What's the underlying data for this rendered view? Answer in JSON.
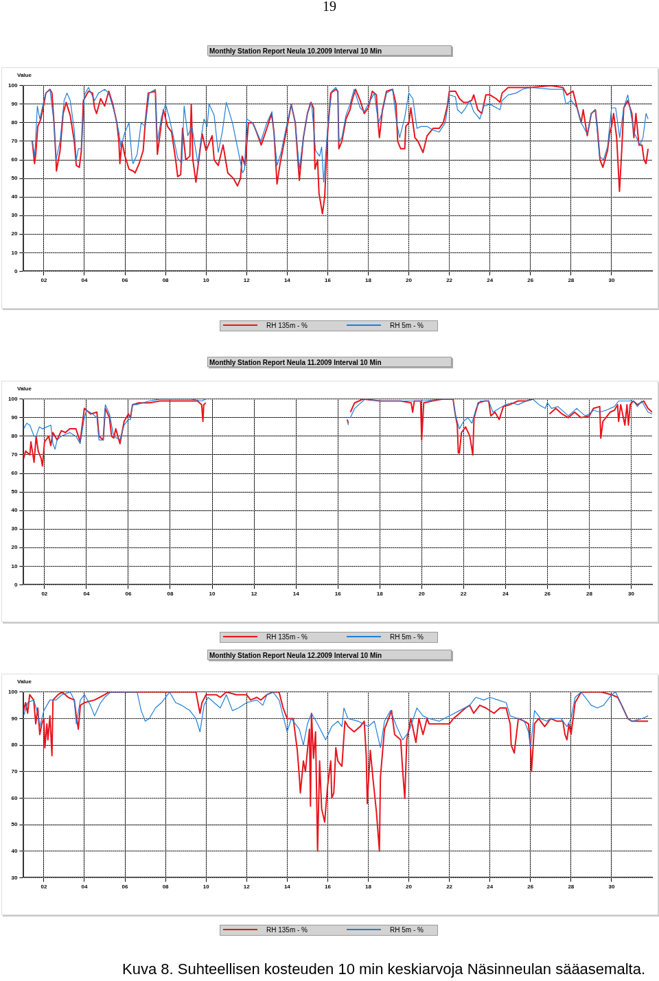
{
  "chart_data": [
    {
      "type": "line",
      "title": "Monthly Station Report Neula 10.2009 Interval 10 Min",
      "ylabel": "Value",
      "xlim": [
        1,
        32
      ],
      "ylim": [
        0,
        100
      ],
      "yticks": [
        0,
        10,
        20,
        30,
        40,
        50,
        60,
        70,
        80,
        90,
        100
      ],
      "xticks": [
        {
          "value": 2,
          "label": "02"
        },
        {
          "value": 4,
          "label": "04"
        },
        {
          "value": 6,
          "label": "06"
        },
        {
          "value": 8,
          "label": "08"
        },
        {
          "value": 10,
          "label": "10"
        },
        {
          "value": 12,
          "label": "12"
        },
        {
          "value": 14,
          "label": "14"
        },
        {
          "value": 16,
          "label": "16"
        },
        {
          "value": 18,
          "label": "18"
        },
        {
          "value": 20,
          "label": "20"
        },
        {
          "value": 22,
          "label": "22"
        },
        {
          "value": 24,
          "label": "24"
        },
        {
          "value": 26,
          "label": "26"
        },
        {
          "value": 28,
          "label": "28"
        },
        {
          "value": 30,
          "label": "30"
        }
      ],
      "grid": true,
      "legend": "bottom",
      "annotations": [
        "19"
      ],
      "series": [
        {
          "name": "RH 5m - %",
          "color": "#1e7fd8",
          "x": [
            1.43,
            1.55,
            1.68,
            1.8,
            2.0,
            2.1,
            2.3,
            2.5,
            2.6,
            2.8,
            3.0,
            3.14,
            3.3,
            3.5,
            3.6,
            3.7,
            3.85,
            4.0,
            4.2,
            4.5,
            4.7,
            5.0,
            5.2,
            5.5,
            5.7,
            5.8,
            6.0,
            6.2,
            6.35,
            6.4,
            6.6,
            6.8,
            7.0,
            7.2,
            7.5,
            7.6,
            7.8,
            8.0,
            8.2,
            8.4,
            8.6,
            8.8,
            8.92,
            9.1,
            9.3,
            9.6,
            9.8,
            9.9,
            10.05,
            10.15,
            10.4,
            10.6,
            10.8,
            11.0,
            11.3,
            11.6,
            11.8,
            11.9,
            12.0,
            12.3,
            12.5,
            12.7,
            13.0,
            13.25,
            13.5,
            13.7,
            14.0,
            14.2,
            14.4,
            14.6,
            14.8,
            15.0,
            15.2,
            15.4,
            15.6,
            15.7,
            15.8,
            16.0,
            16.2,
            16.4,
            16.5,
            16.55,
            16.7,
            16.9,
            17.1,
            17.3,
            17.6,
            17.8,
            18.0,
            18.3,
            18.5,
            18.7,
            18.9,
            19.2,
            19.4,
            19.55,
            19.8,
            20.0,
            20.2,
            20.4,
            20.6,
            20.9,
            21.2,
            21.5,
            21.8,
            22.0,
            22.3,
            22.4,
            22.6,
            22.8,
            23.0,
            23.2,
            23.5,
            23.7,
            24.0,
            24.5,
            24.6,
            24.9,
            25.3,
            25.6,
            26.0,
            27.0,
            27.6,
            27.75,
            28.0,
            28.3,
            28.5,
            28.8,
            29.0,
            29.2,
            29.4,
            29.6,
            29.8,
            30.0,
            30.2,
            30.4,
            30.6,
            30.8,
            31.1,
            31.4,
            31.55,
            31.7,
            31.8
          ],
          "values": [
            70,
            62,
            89,
            82,
            92,
            96,
            98,
            80,
            60,
            70,
            92,
            96,
            92,
            76,
            60,
            66,
            66,
            95,
            99,
            92,
            96,
            98,
            96,
            85,
            75,
            67,
            75,
            80,
            60,
            58,
            63,
            80,
            78,
            96,
            98,
            70,
            83,
            90,
            82,
            72,
            61,
            58,
            89,
            73,
            78,
            58,
            75,
            82,
            78,
            90,
            84,
            64,
            75,
            91,
            80,
            64,
            53,
            55,
            82,
            80,
            75,
            70,
            80,
            86,
            57,
            64,
            80,
            90,
            80,
            55,
            72,
            85,
            91,
            65,
            62,
            67,
            48,
            78,
            97,
            99,
            97,
            70,
            72,
            84,
            90,
            98,
            88,
            86,
            90,
            96,
            80,
            86,
            96,
            98,
            80,
            72,
            83,
            96,
            93,
            77,
            78,
            78,
            76,
            75,
            80,
            95,
            94,
            87,
            85,
            88,
            92,
            86,
            82,
            89,
            90,
            87,
            92,
            95,
            96,
            98,
            99,
            98,
            98,
            90,
            92,
            88,
            80,
            74,
            85,
            87,
            62,
            60,
            67,
            88,
            88,
            72,
            88,
            95,
            75,
            68,
            72,
            85,
            82
          ]
        },
        {
          "name": "RH 135m - %",
          "color": "#e8141c",
          "x": [
            1.43,
            1.54,
            1.6,
            1.7,
            1.85,
            2.0,
            2.1,
            2.3,
            2.4,
            2.5,
            2.6,
            2.62,
            2.8,
            2.95,
            3.1,
            3.3,
            3.5,
            3.6,
            3.75,
            3.85,
            3.95,
            4.2,
            4.4,
            4.5,
            4.6,
            4.8,
            5.0,
            5.2,
            5.4,
            5.6,
            5.7,
            5.75,
            5.85,
            6.0,
            6.2,
            6.4,
            6.5,
            6.7,
            6.9,
            7.0,
            7.15,
            7.5,
            7.6,
            7.8,
            7.9,
            8.1,
            8.3,
            8.5,
            8.6,
            8.75,
            8.84,
            9.0,
            9.2,
            9.27,
            9.35,
            9.5,
            9.7,
            9.81,
            10.0,
            10.3,
            10.4,
            10.6,
            10.84,
            11.07,
            11.35,
            11.55,
            11.7,
            11.78,
            11.92,
            12.09,
            12.3,
            12.49,
            12.72,
            13.0,
            13.23,
            13.35,
            13.5,
            13.65,
            14.0,
            14.2,
            14.4,
            14.6,
            14.8,
            15.0,
            15.17,
            15.3,
            15.37,
            15.5,
            15.57,
            15.74,
            15.85,
            16.0,
            16.15,
            16.4,
            16.5,
            16.55,
            16.7,
            16.9,
            17.1,
            17.2,
            17.37,
            17.6,
            17.8,
            18.0,
            18.2,
            18.4,
            18.5,
            18.55,
            18.7,
            18.9,
            19.2,
            19.37,
            19.45,
            19.6,
            19.8,
            19.85,
            20.0,
            20.1,
            20.3,
            20.45,
            20.7,
            20.9,
            21.2,
            21.5,
            21.7,
            21.9,
            22.0,
            22.3,
            22.5,
            22.7,
            22.9,
            23.1,
            23.2,
            23.4,
            23.6,
            23.8,
            24.0,
            24.3,
            24.5,
            24.6,
            24.9,
            25.5,
            26.0,
            27.0,
            27.6,
            27.8,
            28.1,
            28.3,
            28.5,
            28.6,
            28.8,
            29.0,
            29.2,
            29.3,
            29.43,
            29.57,
            29.8,
            29.9,
            30.0,
            30.1,
            30.25,
            30.39,
            30.5,
            30.6,
            30.8,
            31.0,
            31.1,
            31.2,
            31.35,
            31.5,
            31.6,
            31.7,
            31.8
          ],
          "values": [
            70,
            58,
            63,
            78,
            82,
            90,
            96,
            98,
            96,
            80,
            60,
            54,
            65,
            85,
            91,
            84,
            70,
            57,
            56,
            65,
            92,
            97,
            96,
            88,
            85,
            93,
            89,
            97,
            90,
            80,
            70,
            58,
            70,
            62,
            55,
            54,
            53,
            58,
            65,
            80,
            96,
            97,
            63,
            80,
            87,
            78,
            75,
            60,
            51,
            52,
            77,
            60,
            62,
            90,
            60,
            48,
            65,
            74,
            65,
            73,
            60,
            57,
            68,
            53,
            50,
            46,
            50,
            62,
            57,
            80,
            80,
            75,
            68,
            77,
            85,
            75,
            47,
            58,
            78,
            90,
            80,
            49,
            72,
            85,
            91,
            88,
            55,
            60,
            42,
            31,
            40,
            75,
            96,
            98,
            97,
            66,
            70,
            82,
            87,
            92,
            98,
            92,
            85,
            88,
            97,
            95,
            78,
            72,
            87,
            97,
            98,
            90,
            70,
            66,
            66,
            78,
            80,
            88,
            72,
            70,
            64,
            73,
            77,
            77,
            80,
            89,
            97,
            97,
            93,
            91,
            91,
            92,
            95,
            87,
            85,
            95,
            95,
            93,
            91,
            96,
            99,
            99,
            99,
            100,
            99,
            95,
            97,
            88,
            80,
            87,
            73,
            85,
            87,
            77,
            60,
            56,
            65,
            74,
            78,
            85,
            72,
            43,
            65,
            88,
            92,
            85,
            72,
            85,
            68,
            68,
            60,
            58,
            66
          ]
        }
      ]
    },
    {
      "type": "line",
      "title": "Monthly Station Report Neula 11.2009 Interval 10 Min",
      "ylabel": "Value",
      "xlim": [
        1,
        31
      ],
      "ylim": [
        0,
        100
      ],
      "yticks": [
        0,
        10,
        20,
        30,
        40,
        50,
        60,
        70,
        80,
        90,
        100
      ],
      "xticks": [
        {
          "value": 2,
          "label": "02"
        },
        {
          "value": 4,
          "label": "04"
        },
        {
          "value": 6,
          "label": "06"
        },
        {
          "value": 8,
          "label": "08"
        },
        {
          "value": 10,
          "label": "10"
        },
        {
          "value": 12,
          "label": "12"
        },
        {
          "value": 14,
          "label": "14"
        },
        {
          "value": 16,
          "label": "16"
        },
        {
          "value": 18,
          "label": "18"
        },
        {
          "value": 20,
          "label": "20"
        },
        {
          "value": 22,
          "label": "22"
        },
        {
          "value": 24,
          "label": "24"
        },
        {
          "value": 26,
          "label": "26"
        },
        {
          "value": 28,
          "label": "28"
        },
        {
          "value": 30,
          "label": "30"
        }
      ],
      "grid": true,
      "legend": "bottom",
      "series": [
        {
          "name": "RH 5m - %",
          "color": "#1e7fd8",
          "x": [
            1.0,
            1.15,
            1.3,
            1.5,
            1.6,
            1.75,
            1.9,
            2.1,
            2.3,
            2.4,
            2.5,
            2.6,
            2.8,
            3.2,
            3.5,
            3.7,
            3.9,
            4.0,
            4.3,
            4.5,
            4.6,
            4.8,
            4.9,
            5.1,
            5.3,
            5.6,
            5.8,
            6.0,
            6.1,
            6.2,
            6.4,
            7.0,
            7.5,
            8.0,
            9.0,
            9.5,
            9.7,
            13,
            16.45,
            16.5,
            16.55,
            16.6,
            16.8,
            17.0,
            17.3,
            18.0,
            19.0,
            19.5,
            20.0,
            21.0,
            21.5,
            21.6,
            21.8,
            22.0,
            22.2,
            22.4,
            22.6,
            22.8,
            23.2,
            23.4,
            23.7,
            24.0,
            24.3,
            24.6,
            25.0,
            25.3,
            25.6,
            25.9,
            26.0,
            26.2,
            26.5,
            27.0,
            27.4,
            27.8,
            28.0,
            28.2,
            28.5,
            28.8,
            29.2,
            29.4,
            29.8,
            30.1,
            30.3,
            30.5,
            30.8,
            31.0
          ],
          "values": [
            84,
            87,
            86,
            80,
            80,
            85,
            84,
            85,
            86,
            76,
            73,
            78,
            80,
            82,
            80,
            76,
            90,
            94,
            92,
            90,
            78,
            78,
            97,
            92,
            80,
            78,
            86,
            89,
            89,
            97,
            97,
            99,
            100,
            100,
            100,
            99,
            100,
            null,
            89,
            86,
            null,
            90,
            95,
            97,
            100,
            99,
            99,
            99,
            99,
            100,
            100,
            92,
            84,
            88,
            90,
            87,
            95,
            99,
            99,
            93,
            95,
            97,
            98,
            97,
            99,
            100,
            97,
            95,
            98,
            95,
            96,
            91,
            95,
            91,
            92,
            94,
            93,
            94,
            96,
            99,
            99,
            99,
            96,
            99,
            93,
            92
          ]
        },
        {
          "name": "RH 135m - %",
          "color": "#e8141c",
          "x": [
            1.0,
            1.1,
            1.3,
            1.35,
            1.5,
            1.6,
            1.7,
            1.84,
            1.9,
            2.0,
            2.2,
            2.3,
            2.4,
            2.6,
            2.8,
            3.0,
            3.2,
            3.5,
            3.7,
            3.9,
            4.2,
            4.5,
            4.6,
            4.8,
            4.9,
            5.1,
            5.2,
            5.3,
            5.4,
            5.6,
            5.8,
            6.0,
            6.1,
            6.2,
            6.5,
            7.0,
            7.5,
            8.0,
            9.0,
            9.3,
            9.5,
            9.56,
            9.6,
            9.7,
            13,
            16.45,
            16.5,
            16.55,
            16.6,
            16.8,
            17.2,
            18.0,
            19.0,
            19.5,
            19.57,
            19.65,
            19.95,
            20.0,
            20.1,
            20.5,
            21.0,
            21.5,
            21.6,
            21.7,
            21.75,
            21.8,
            21.9,
            22.1,
            22.3,
            22.44,
            22.5,
            22.7,
            23.0,
            23.2,
            23.3,
            23.5,
            23.7,
            23.9,
            24.2,
            24.6,
            25.0,
            25.3,
            25.6,
            26.1,
            26.2,
            26.4,
            26.7,
            27.0,
            27.3,
            27.6,
            28.0,
            28.2,
            28.5,
            28.55,
            28.65,
            29.0,
            29.2,
            29.35,
            29.4,
            29.5,
            29.7,
            29.8,
            29.87,
            29.95,
            30.1,
            30.3,
            30.6,
            30.8,
            31.0
          ],
          "values": [
            68,
            72,
            70,
            77,
            66,
            80,
            72,
            68,
            64,
            77,
            80,
            75,
            82,
            78,
            83,
            82,
            84,
            84,
            77,
            95,
            92,
            93,
            80,
            78,
            95,
            90,
            80,
            79,
            84,
            76,
            88,
            92,
            90,
            97,
            98,
            98,
            99,
            99,
            99,
            99,
            97,
            88,
            97,
            98,
            null,
            89,
            87,
            null,
            93,
            98,
            100,
            99,
            99,
            98,
            93,
            99,
            99,
            78,
            98,
            99,
            100,
            100,
            92,
            86,
            71,
            71,
            82,
            85,
            80,
            70,
            90,
            98,
            99,
            99,
            91,
            93,
            89,
            96,
            97,
            99,
            99,
            100,
            null,
            92,
            93,
            95,
            92,
            90,
            93,
            90,
            91,
            95,
            96,
            79,
            88,
            93,
            94,
            97,
            88,
            97,
            86,
            97,
            86,
            97,
            99,
            97,
            99,
            95,
            93
          ]
        }
      ]
    },
    {
      "type": "line",
      "title": "Monthly Station Report Neula 12.2009 Interval 10 Min",
      "ylabel": "Value",
      "xlim": [
        1,
        32
      ],
      "ylim": [
        30,
        100
      ],
      "yticks": [
        30,
        40,
        50,
        60,
        70,
        80,
        90,
        100
      ],
      "xticks": [
        {
          "value": 2,
          "label": "02"
        },
        {
          "value": 4,
          "label": "04"
        },
        {
          "value": 6,
          "label": "06"
        },
        {
          "value": 8,
          "label": "08"
        },
        {
          "value": 10,
          "label": "10"
        },
        {
          "value": 12,
          "label": "12"
        },
        {
          "value": 14,
          "label": "14"
        },
        {
          "value": 16,
          "label": "16"
        },
        {
          "value": 18,
          "label": "18"
        },
        {
          "value": 20,
          "label": "20"
        },
        {
          "value": 22,
          "label": "22"
        },
        {
          "value": 24,
          "label": "24"
        },
        {
          "value": 26,
          "label": "26"
        },
        {
          "value": 28,
          "label": "28"
        },
        {
          "value": 30,
          "label": "30"
        }
      ],
      "grid": true,
      "legend": "bottom",
      "annotations": [
        "Kuva 8. Suhteellisen kosteuden 10 min keskiarvoja Näsinneulan sääasemalta."
      ],
      "series": [
        {
          "name": "RH 5m - %",
          "color": "#1e7fd8",
          "x": [
            1.0,
            1.2,
            1.5,
            1.7,
            1.8,
            2.0,
            2.3,
            2.6,
            2.9,
            3.3,
            3.5,
            3.6,
            3.8,
            4.0,
            4.3,
            4.5,
            4.8,
            5.0,
            5.3,
            6.6,
            6.8,
            7.0,
            7.2,
            7.5,
            7.8,
            8.0,
            8.2,
            8.5,
            8.8,
            9.2,
            9.5,
            9.7,
            9.9,
            10.1,
            10.4,
            10.7,
            11.0,
            11.3,
            11.6,
            12.0,
            12.5,
            12.8,
            13.0,
            13.3,
            13.6,
            13.8,
            14.0,
            14.2,
            14.4,
            14.6,
            14.8,
            15.0,
            15.2,
            15.5,
            15.9,
            16.2,
            16.5,
            16.7,
            16.8,
            17.0,
            17.5,
            18.0,
            18.3,
            18.6,
            18.8,
            19.1,
            19.4,
            19.7,
            20.0,
            20.4,
            20.7,
            21.0,
            21.5,
            22.0,
            22.5,
            23.0,
            23.3,
            23.7,
            24.0,
            24.4,
            24.8,
            25.0,
            25.4,
            25.7,
            25.9,
            26.0,
            26.2,
            26.5,
            26.8,
            27.0,
            27.5,
            27.8,
            28.0,
            28.2,
            28.5,
            29.0,
            29.3,
            29.6,
            30.0,
            30.2,
            30.5,
            30.8,
            31.0,
            31.5,
            31.8
          ],
          "values": [
            91,
            96,
            97,
            92,
            87,
            93,
            97,
            97,
            99,
            100,
            97,
            88,
            97,
            99,
            95,
            91,
            96,
            98,
            100,
            100,
            93,
            89,
            90,
            94,
            96,
            98,
            100,
            96,
            95,
            93,
            90,
            85,
            95,
            98,
            96,
            94,
            99,
            93,
            94,
            96,
            97,
            95,
            99,
            100,
            97,
            91,
            85,
            90,
            88,
            86,
            80,
            88,
            92,
            88,
            82,
            87,
            89,
            87,
            94,
            90,
            89,
            87,
            89,
            79,
            89,
            93,
            87,
            82,
            85,
            94,
            91,
            90,
            89,
            91,
            93,
            95,
            98,
            97,
            98,
            97,
            96,
            91,
            90,
            89,
            85,
            79,
            93,
            90,
            89,
            90,
            90,
            87,
            90,
            98,
            100,
            95,
            94,
            95,
            99,
            100,
            95,
            90,
            89,
            90,
            91
          ]
        },
        {
          "name": "RH 135m - %",
          "color": "#e8141c",
          "x": [
            1.0,
            1.1,
            1.2,
            1.3,
            1.5,
            1.6,
            1.7,
            1.8,
            1.9,
            2.0,
            2.05,
            2.15,
            2.2,
            2.3,
            2.4,
            2.45,
            2.7,
            2.9,
            3.2,
            3.5,
            3.6,
            3.7,
            3.8,
            4.0,
            4.5,
            5.0,
            5.2,
            9.5,
            9.7,
            9.8,
            10.0,
            10.5,
            10.7,
            11.0,
            11.5,
            12.0,
            12.2,
            12.5,
            12.7,
            13.0,
            13.3,
            13.6,
            13.8,
            14.0,
            14.3,
            14.4,
            14.5,
            14.6,
            14.65,
            14.8,
            14.9,
            15.1,
            15.15,
            15.2,
            15.3,
            15.4,
            15.5,
            15.6,
            15.7,
            15.85,
            16.0,
            16.15,
            16.2,
            16.3,
            16.4,
            16.5,
            16.7,
            16.85,
            17.0,
            17.3,
            17.6,
            17.8,
            17.9,
            17.95,
            18.1,
            18.25,
            18.4,
            18.55,
            18.6,
            18.8,
            19.15,
            19.3,
            19.6,
            19.7,
            19.8,
            19.9,
            20.1,
            20.35,
            20.5,
            20.7,
            20.9,
            21.0,
            21.5,
            22.0,
            22.2,
            22.5,
            22.8,
            23.0,
            23.2,
            23.5,
            23.8,
            24.2,
            24.5,
            24.8,
            25.0,
            25.05,
            25.2,
            25.4,
            25.7,
            25.9,
            26.0,
            26.05,
            26.2,
            26.4,
            26.7,
            27.0,
            27.3,
            27.6,
            27.7,
            27.8,
            27.9,
            28.0,
            28.2,
            28.5,
            29.5,
            30.0,
            30.3,
            30.5,
            30.8,
            31.0,
            31.8
          ],
          "values": [
            93,
            96,
            92,
            99,
            97,
            88,
            94,
            84,
            88,
            90,
            79,
            88,
            82,
            91,
            76,
            97,
            99,
            100,
            98,
            97,
            91,
            86,
            95,
            96,
            97,
            99,
            100,
            100,
            92,
            96,
            99,
            99,
            98,
            100,
            99,
            99,
            97,
            98,
            97,
            99,
            100,
            100,
            94,
            90,
            90,
            84,
            78,
            68,
            62,
            74,
            70,
            86,
            57,
            92,
            75,
            85,
            40,
            74,
            56,
            51,
            65,
            74,
            60,
            62,
            79,
            74,
            72,
            89,
            87,
            85,
            87,
            89,
            76,
            58,
            78,
            66,
            55,
            40,
            68,
            86,
            93,
            84,
            82,
            70,
            60,
            82,
            90,
            81,
            90,
            84,
            90,
            88,
            88,
            88,
            90,
            92,
            94,
            95,
            92,
            95,
            94,
            92,
            94,
            94,
            88,
            80,
            77,
            90,
            89,
            88,
            80,
            70,
            88,
            90,
            87,
            90,
            89,
            89,
            84,
            82,
            88,
            84,
            96,
            100,
            100,
            99,
            98,
            95,
            90,
            89,
            89
          ]
        }
      ]
    }
  ]
}
